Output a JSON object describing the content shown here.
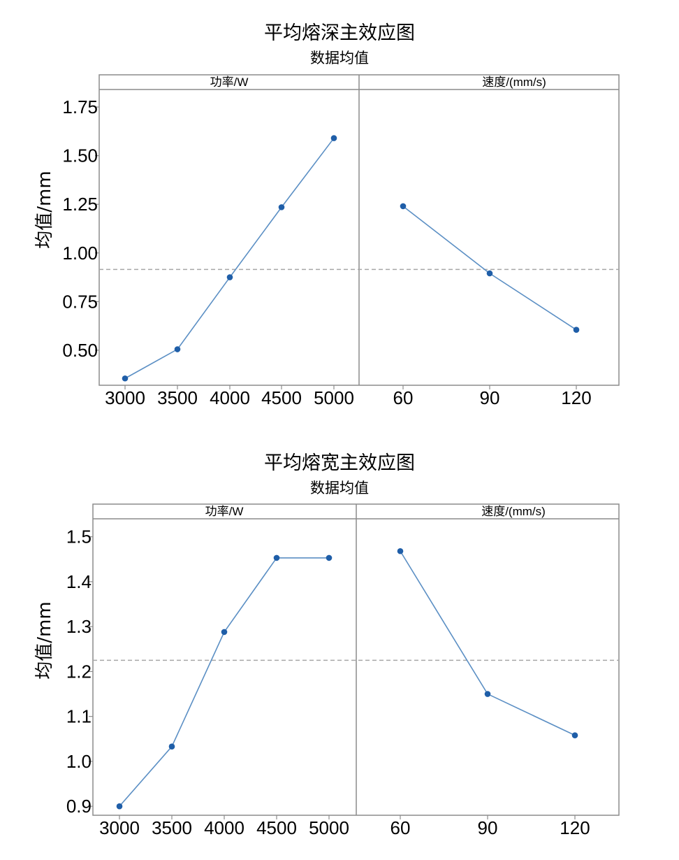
{
  "colors": {
    "line": "#5b8fc4",
    "point": "#1f5ea8",
    "frame": "#8c8c8c",
    "mean_line": "#a6a6a6"
  },
  "chart_data": [
    {
      "type": "line",
      "title": "平均熔深主效应图",
      "subtitle": "数据均值",
      "ylabel": "均值/mm",
      "ylim": [
        0.32,
        1.84
      ],
      "yticks": [
        "0.50",
        "0.75",
        "1.00",
        "1.25",
        "1.50",
        "1.75"
      ],
      "ytick_values": [
        0.5,
        0.75,
        1.0,
        1.25,
        1.5,
        1.75
      ],
      "grand_mean": 0.915,
      "panels": [
        {
          "label": "功率/W",
          "categories": [
            "3000",
            "3500",
            "4000",
            "4500",
            "5000"
          ],
          "values": [
            0.355,
            0.505,
            0.875,
            1.235,
            1.59
          ]
        },
        {
          "label": "速度/(mm/s)",
          "categories": [
            "60",
            "90",
            "120"
          ],
          "values": [
            1.24,
            0.895,
            0.605
          ]
        }
      ]
    },
    {
      "type": "line",
      "title": "平均熔宽主效应图",
      "subtitle": "数据均值",
      "ylabel": "均值/mm",
      "ylim": [
        0.88,
        1.54
      ],
      "yticks": [
        "0.9",
        "1.0",
        "1.1",
        "1.2",
        "1.3",
        "1.4",
        "1.5"
      ],
      "ytick_values": [
        0.9,
        1.0,
        1.1,
        1.2,
        1.3,
        1.4,
        1.5
      ],
      "grand_mean": 1.225,
      "panels": [
        {
          "label": "功率/W",
          "categories": [
            "3000",
            "3500",
            "4000",
            "4500",
            "5000"
          ],
          "values": [
            0.9,
            1.033,
            1.288,
            1.453,
            1.453
          ]
        },
        {
          "label": "速度/(mm/s)",
          "categories": [
            "60",
            "90",
            "120"
          ],
          "values": [
            1.468,
            1.15,
            1.058
          ]
        }
      ]
    }
  ]
}
